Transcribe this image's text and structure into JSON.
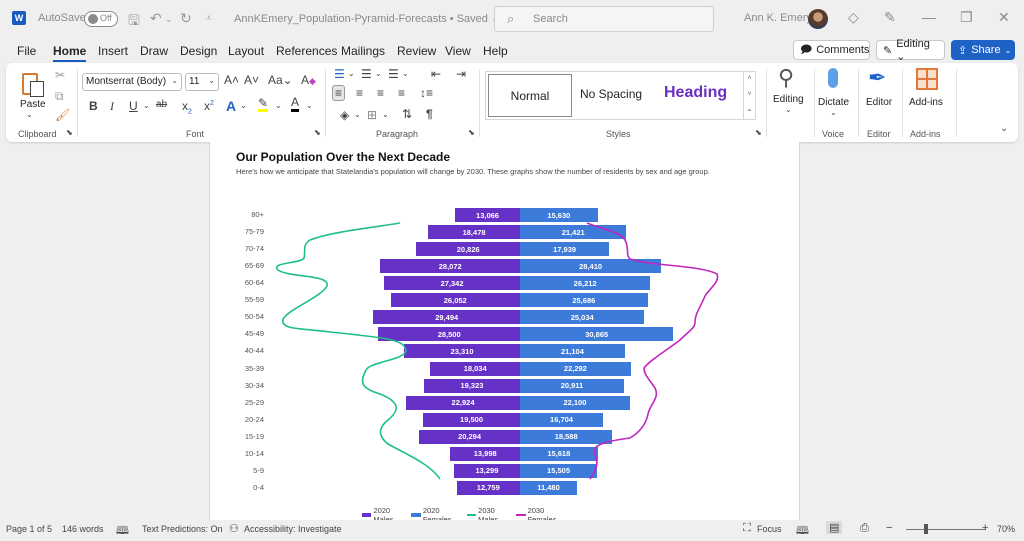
{
  "titlebar": {
    "app_icon": "W",
    "autosave_label": "AutoSave",
    "autosave_state": "Off",
    "document_title": "AnnKEmery_Population-Pyramid-Forecasts • Saved ⌄",
    "search_placeholder": "Search",
    "user_name": "Ann K. Emery",
    "icons": [
      "save-icon",
      "undo-icon",
      "redo-icon",
      "customize-qat-icon",
      "diamond-icon",
      "pen-icon",
      "minimize-icon",
      "restore-icon",
      "close-icon"
    ]
  },
  "menu": {
    "items": [
      "File",
      "Home",
      "Insert",
      "Draw",
      "Design",
      "Layout",
      "References",
      "Mailings",
      "Review",
      "View",
      "Help"
    ],
    "active": "Home",
    "comments_label": "Comments",
    "editing_label": "Editing ⌄",
    "share_label": "Share"
  },
  "ribbon": {
    "clipboard": {
      "paste_label": "Paste",
      "group_label": "Clipboard"
    },
    "font": {
      "font_name": "Montserrat (Body)",
      "font_size": "11",
      "group_label": "Font",
      "highlight_color": "#ffff00",
      "font_color": "#000000"
    },
    "paragraph": {
      "group_label": "Paragraph"
    },
    "styles": {
      "normal": "Normal",
      "no_spacing": "No Spacing",
      "heading": "Heading",
      "group_label": "Styles",
      "heading_color": "#6b2fc0"
    },
    "editing": {
      "label": "Editing"
    },
    "voice": {
      "dictate_label": "Dictate",
      "group_label": "Voice"
    },
    "editor": {
      "label": "Editor",
      "group_label": "Editor"
    },
    "addins": {
      "label": "Add-ins",
      "group_label": "Add-ins"
    }
  },
  "document": {
    "heading": "Our Population Over the Next Decade",
    "subtitle": "Here's how we anticipate that Statelandia's population will change by 2030. These graphs show the number of residents by sex and age group."
  },
  "chart_data": {
    "type": "bar",
    "subtype": "population-pyramid",
    "title": "Our Population Over the Next Decade",
    "categories": [
      "80+",
      "75-79",
      "70-74",
      "65-69",
      "60-64",
      "55-59",
      "50-54",
      "45-49",
      "40-44",
      "35-39",
      "30-34",
      "25-29",
      "20-24",
      "15-19",
      "10-14",
      "5-9",
      "0-4"
    ],
    "series": [
      {
        "name": "2020 Males",
        "type": "bar",
        "color": "#6631c6",
        "side": "left",
        "values": [
          13066,
          18478,
          20826,
          28072,
          27342,
          26052,
          29494,
          28500,
          23310,
          18034,
          19323,
          22924,
          19500,
          20294,
          13998,
          13299,
          12759
        ],
        "labels": [
          "13,066",
          "18,478",
          "20,826",
          "28,072",
          "27,342",
          "26,052",
          "29,494",
          "28,500",
          "23,310",
          "18,034",
          "19,323",
          "22,924",
          "19,500",
          "20,294",
          "13,998",
          "13,299",
          "12,759"
        ]
      },
      {
        "name": "2020 Females",
        "type": "bar",
        "color": "#3d7bdb",
        "side": "right",
        "values": [
          15630,
          21421,
          17939,
          28410,
          26212,
          25686,
          25034,
          30865,
          21104,
          22292,
          20911,
          22100,
          16704,
          18588,
          15618,
          15505,
          11480
        ],
        "labels": [
          "15,630",
          "21,421",
          "17,939",
          "28,410",
          "26,212",
          "25,686",
          "25,034",
          "30,865",
          "21,104",
          "22,292",
          "20,911",
          "22,100",
          "16,704",
          "18,588",
          "15,618",
          "15,505",
          "11,480"
        ]
      },
      {
        "name": "2030 Males",
        "type": "line",
        "color": "#1fbf8a",
        "side": "left",
        "values_approx": [
          24000,
          42000,
          41000,
          48000,
          27000,
          37000,
          46000,
          24000,
          33000,
          35000,
          30000,
          32000,
          37000,
          24000,
          12000,
          12000,
          14000
        ]
      },
      {
        "name": "2030 Females",
        "type": "line",
        "color": "#c026c0",
        "side": "right",
        "values_approx": [
          14000,
          22000,
          25000,
          40000,
          36000,
          30000,
          27000,
          30000,
          21000,
          21000,
          25000,
          24000,
          20000,
          16000,
          15000,
          14000,
          13000
        ]
      }
    ],
    "legend": [
      "2020 Males",
      "2020 Females",
      "2030 Males",
      "2030 Females"
    ],
    "legend_position": "bottom",
    "grid": false,
    "xlabel": "",
    "ylabel": ""
  },
  "statusbar": {
    "page": "Page 1 of 5",
    "words": "146 words",
    "text_predictions": "Text Predictions: On",
    "accessibility": "Accessibility: Investigate",
    "focus": "Focus",
    "zoom_minus": "−",
    "zoom_plus": "+",
    "zoom_level": "70%"
  }
}
